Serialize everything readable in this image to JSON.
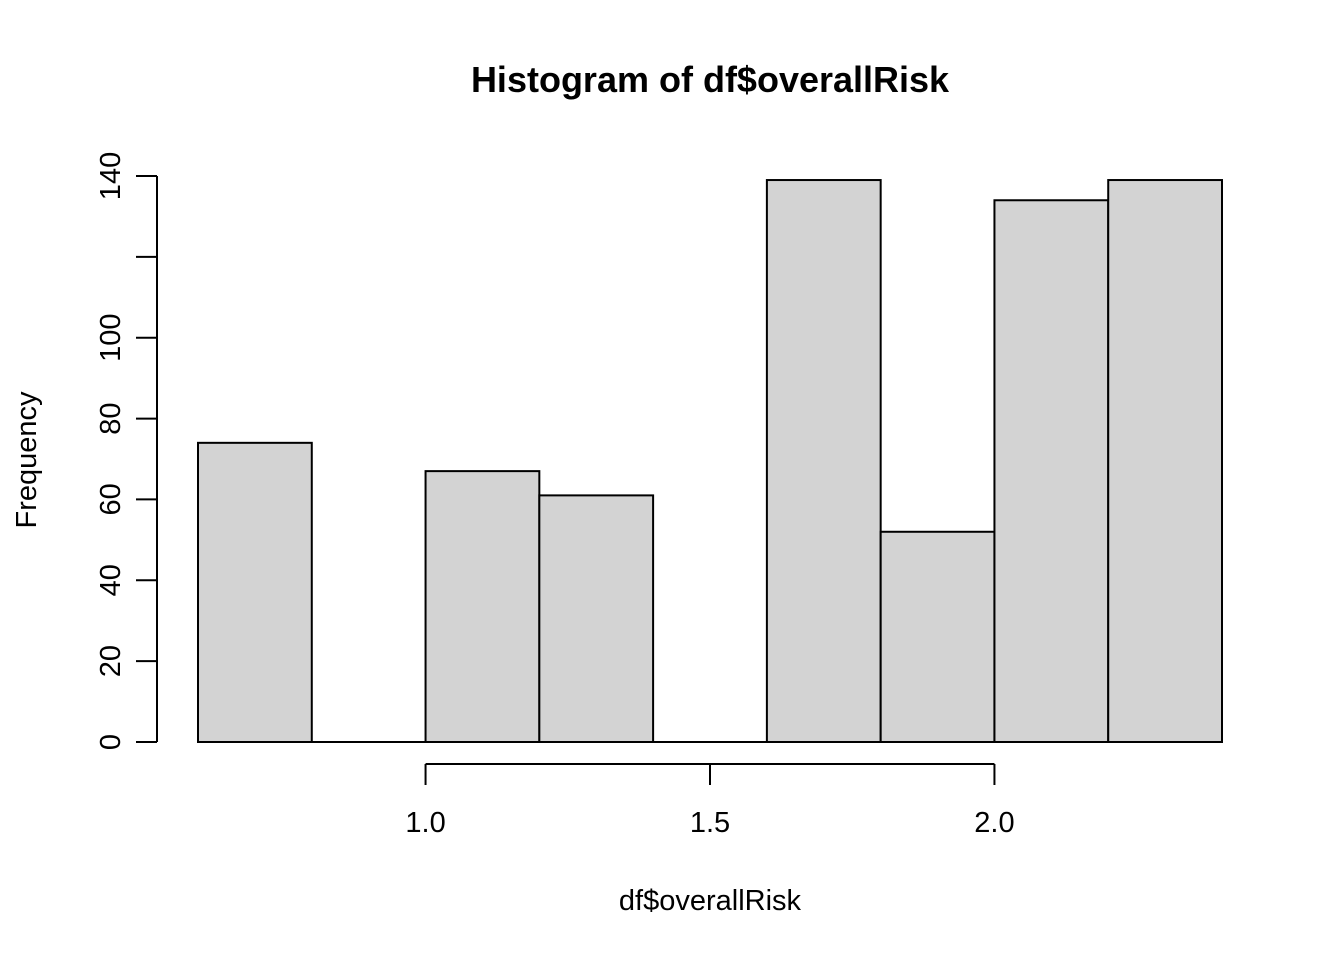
{
  "chart_data": {
    "type": "bar",
    "subtype": "histogram",
    "title": "Histogram of df$overallRisk",
    "xlabel": "df$overallRisk",
    "ylabel": "Frequency",
    "bins": [
      {
        "start": 0.6,
        "end": 0.8,
        "count": 74
      },
      {
        "start": 0.8,
        "end": 1.0,
        "count": 0
      },
      {
        "start": 1.0,
        "end": 1.2,
        "count": 67
      },
      {
        "start": 1.2,
        "end": 1.4,
        "count": 61
      },
      {
        "start": 1.4,
        "end": 1.6,
        "count": 0
      },
      {
        "start": 1.6,
        "end": 1.8,
        "count": 139
      },
      {
        "start": 1.8,
        "end": 2.0,
        "count": 52
      },
      {
        "start": 2.0,
        "end": 2.2,
        "count": 134
      },
      {
        "start": 2.2,
        "end": 2.4,
        "count": 139
      }
    ],
    "xlim": [
      0.6,
      2.4
    ],
    "ylim": [
      0,
      140
    ],
    "x_ticks": [
      "1.0",
      "1.5",
      "2.0"
    ],
    "y_ticks": [
      "0",
      "20",
      "40",
      "60",
      "80",
      "100",
      "120",
      "140"
    ],
    "y_tick_labels_shown": [
      "0",
      "20",
      "40",
      "60",
      "80",
      "100",
      "140"
    ],
    "grid": false,
    "bar_fill": "#d3d3d3",
    "bar_stroke": "#000000"
  }
}
